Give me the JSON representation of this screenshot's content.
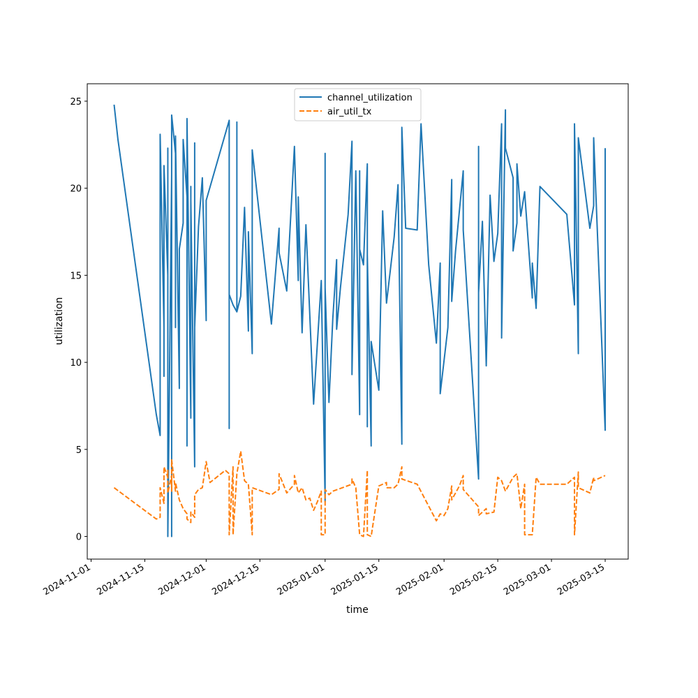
{
  "chart_data": {
    "type": "line",
    "title": "",
    "xlabel": "time",
    "ylabel": "utilization",
    "xlim": [
      "2024-10-31",
      "2025-03-21"
    ],
    "ylim": [
      -1.3,
      26
    ],
    "grid": false,
    "legend_position": "top-center",
    "x_ticks": [
      "2024-11-01",
      "2024-11-15",
      "2024-12-01",
      "2024-12-15",
      "2025-01-01",
      "2025-01-15",
      "2025-02-01",
      "2025-02-15",
      "2025-03-01",
      "2025-03-15"
    ],
    "y_ticks": [
      0,
      5,
      10,
      15,
      20,
      25
    ],
    "series": [
      {
        "name": "channel_utilization",
        "color": "#1f77b4",
        "style": "solid",
        "points": [
          [
            "2024-11-07",
            24.8
          ],
          [
            "2024-11-08",
            22.8
          ],
          [
            "2024-11-18",
            7.0
          ],
          [
            "2024-11-19",
            5.8
          ],
          [
            "2024-11-19",
            23.1
          ],
          [
            "2024-11-20",
            12.0
          ],
          [
            "2024-11-20",
            20.3
          ],
          [
            "2024-11-20",
            9.2
          ],
          [
            "2024-11-20",
            21.3
          ],
          [
            "2024-11-21",
            15.0
          ],
          [
            "2024-11-21",
            22.3
          ],
          [
            "2024-11-21",
            17.6
          ],
          [
            "2024-11-21",
            22.3
          ],
          [
            "2024-11-21",
            0.0
          ],
          [
            "2024-11-22",
            20.8
          ],
          [
            "2024-11-22",
            3.6
          ],
          [
            "2024-11-22",
            20.6
          ],
          [
            "2024-11-22",
            0.0
          ],
          [
            "2024-11-22",
            20.6
          ],
          [
            "2024-11-22",
            24.2
          ],
          [
            "2024-11-23",
            22.0
          ],
          [
            "2024-11-23",
            12.0
          ],
          [
            "2024-11-23",
            21.3
          ],
          [
            "2024-11-23",
            18.2
          ],
          [
            "2024-11-23",
            23.0
          ],
          [
            "2024-11-24",
            8.5
          ],
          [
            "2024-11-24",
            16.5
          ],
          [
            "2024-11-25",
            18.0
          ],
          [
            "2024-11-25",
            22.8
          ],
          [
            "2024-11-26",
            19.5
          ],
          [
            "2024-11-26",
            9.3
          ],
          [
            "2024-11-26",
            20.2
          ],
          [
            "2024-11-26",
            5.2
          ],
          [
            "2024-11-26",
            24.0
          ],
          [
            "2024-11-27",
            6.8
          ],
          [
            "2024-11-27",
            20.1
          ],
          [
            "2024-11-27",
            7.0
          ],
          [
            "2024-11-27",
            19.3
          ],
          [
            "2024-11-28",
            4.0
          ],
          [
            "2024-11-28",
            22.6
          ],
          [
            "2024-11-28",
            12.0
          ],
          [
            "2024-11-29",
            17.8
          ],
          [
            "2024-11-30",
            20.6
          ],
          [
            "2024-12-01",
            12.4
          ],
          [
            "2024-12-01",
            15.7
          ],
          [
            "2024-12-01",
            19.3
          ],
          [
            "2024-12-07",
            23.9
          ],
          [
            "2024-12-07",
            21.0
          ],
          [
            "2024-12-07",
            6.2
          ],
          [
            "2024-12-07",
            13.9
          ],
          [
            "2024-12-08",
            13.3
          ],
          [
            "2024-12-09",
            12.9
          ],
          [
            "2024-12-09",
            23.8
          ],
          [
            "2024-12-09",
            12.9
          ],
          [
            "2024-12-10",
            13.8
          ],
          [
            "2024-12-11",
            18.9
          ],
          [
            "2024-12-12",
            11.8
          ],
          [
            "2024-12-12",
            17.5
          ],
          [
            "2024-12-13",
            10.5
          ],
          [
            "2024-12-13",
            22.2
          ],
          [
            "2024-12-18",
            12.2
          ],
          [
            "2024-12-20",
            17.7
          ],
          [
            "2024-12-20",
            16.3
          ],
          [
            "2024-12-22",
            14.1
          ],
          [
            "2024-12-24",
            22.4
          ],
          [
            "2024-12-25",
            14.7
          ],
          [
            "2024-12-25",
            19.5
          ],
          [
            "2024-12-26",
            11.7
          ],
          [
            "2024-12-27",
            17.9
          ],
          [
            "2024-12-29",
            7.6
          ],
          [
            "2024-12-31",
            14.7
          ],
          [
            "2025-01-01",
            2.0
          ],
          [
            "2025-01-01",
            22.0
          ],
          [
            "2025-01-01",
            14.3
          ],
          [
            "2025-01-02",
            7.7
          ],
          [
            "2025-01-03",
            12.5
          ],
          [
            "2025-01-04",
            15.9
          ],
          [
            "2025-01-04",
            11.9
          ],
          [
            "2025-01-05",
            14.3
          ],
          [
            "2025-01-07",
            18.5
          ],
          [
            "2025-01-08",
            22.7
          ],
          [
            "2025-01-08",
            9.3
          ],
          [
            "2025-01-09",
            21.0
          ],
          [
            "2025-01-10",
            7.0
          ],
          [
            "2025-01-10",
            21.0
          ],
          [
            "2025-01-10",
            16.5
          ],
          [
            "2025-01-11",
            15.6
          ],
          [
            "2025-01-12",
            21.4
          ],
          [
            "2025-01-12",
            6.3
          ],
          [
            "2025-01-12",
            14.5
          ],
          [
            "2025-01-12",
            10.4
          ],
          [
            "2025-01-12",
            16.2
          ],
          [
            "2025-01-13",
            5.2
          ],
          [
            "2025-01-13",
            11.2
          ],
          [
            "2025-01-15",
            8.4
          ],
          [
            "2025-01-16",
            18.7
          ],
          [
            "2025-01-17",
            13.4
          ],
          [
            "2025-01-19",
            17.2
          ],
          [
            "2025-01-20",
            20.2
          ],
          [
            "2025-01-21",
            5.3
          ],
          [
            "2025-01-21",
            23.5
          ],
          [
            "2025-01-22",
            17.7
          ],
          [
            "2025-01-25",
            17.6
          ],
          [
            "2025-01-26",
            23.7
          ],
          [
            "2025-01-28",
            15.6
          ],
          [
            "2025-01-30",
            11.1
          ],
          [
            "2025-01-31",
            15.7
          ],
          [
            "2025-01-31",
            8.2
          ],
          [
            "2025-02-02",
            12.0
          ],
          [
            "2025-02-03",
            20.5
          ],
          [
            "2025-02-03",
            13.5
          ],
          [
            "2025-02-04",
            16.4
          ],
          [
            "2025-02-06",
            21.0
          ],
          [
            "2025-02-06",
            17.6
          ],
          [
            "2025-02-10",
            3.3
          ],
          [
            "2025-02-10",
            22.4
          ],
          [
            "2025-02-10",
            7.5
          ],
          [
            "2025-02-10",
            14.0
          ],
          [
            "2025-02-11",
            18.1
          ],
          [
            "2025-02-12",
            9.8
          ],
          [
            "2025-02-13",
            19.6
          ],
          [
            "2025-02-14",
            15.8
          ],
          [
            "2025-02-15",
            17.4
          ],
          [
            "2025-02-16",
            23.7
          ],
          [
            "2025-02-16",
            11.4
          ],
          [
            "2025-02-17",
            24.5
          ],
          [
            "2025-02-17",
            22.3
          ],
          [
            "2025-02-19",
            20.6
          ],
          [
            "2025-02-19",
            16.4
          ],
          [
            "2025-02-20",
            18.0
          ],
          [
            "2025-02-20",
            21.4
          ],
          [
            "2025-02-21",
            18.4
          ],
          [
            "2025-02-22",
            19.8
          ],
          [
            "2025-02-24",
            13.7
          ],
          [
            "2025-02-24",
            15.7
          ],
          [
            "2025-02-25",
            13.1
          ],
          [
            "2025-02-26",
            20.1
          ],
          [
            "2025-03-05",
            18.5
          ],
          [
            "2025-03-07",
            13.3
          ],
          [
            "2025-03-07",
            23.7
          ],
          [
            "2025-03-08",
            10.5
          ],
          [
            "2025-03-08",
            22.9
          ],
          [
            "2025-03-11",
            17.7
          ],
          [
            "2025-03-12",
            19.0
          ],
          [
            "2025-03-12",
            22.9
          ],
          [
            "2025-03-15",
            6.1
          ],
          [
            "2025-03-15",
            22.3
          ]
        ]
      },
      {
        "name": "air_util_tx",
        "color": "#ff7f0e",
        "style": "dashed",
        "points": [
          [
            "2024-11-07",
            2.8
          ],
          [
            "2024-11-18",
            1.0
          ],
          [
            "2024-11-19",
            1.1
          ],
          [
            "2024-11-19",
            2.8
          ],
          [
            "2024-11-20",
            1.9
          ],
          [
            "2024-11-20",
            4.0
          ],
          [
            "2024-11-21",
            3.4
          ],
          [
            "2024-11-21",
            3.8
          ],
          [
            "2024-11-21",
            2.5
          ],
          [
            "2024-11-22",
            3.5
          ],
          [
            "2024-11-22",
            2.6
          ],
          [
            "2024-11-22",
            4.4
          ],
          [
            "2024-11-23",
            2.6
          ],
          [
            "2024-11-23",
            3.1
          ],
          [
            "2024-11-24",
            2.1
          ],
          [
            "2024-11-25",
            1.6
          ],
          [
            "2024-11-26",
            1.3
          ],
          [
            "2024-11-26",
            1.0
          ],
          [
            "2024-11-27",
            0.8
          ],
          [
            "2024-11-27",
            1.4
          ],
          [
            "2024-11-28",
            1.1
          ],
          [
            "2024-11-28",
            2.4
          ],
          [
            "2024-11-29",
            2.7
          ],
          [
            "2024-11-30",
            2.8
          ],
          [
            "2024-12-01",
            4.3
          ],
          [
            "2024-12-02",
            3.1
          ],
          [
            "2024-12-06",
            3.8
          ],
          [
            "2024-12-07",
            3.6
          ],
          [
            "2024-12-07",
            0.1
          ],
          [
            "2024-12-08",
            4.0
          ],
          [
            "2024-12-08",
            0.1
          ],
          [
            "2024-12-09",
            3.6
          ],
          [
            "2024-12-10",
            4.9
          ],
          [
            "2024-12-11",
            3.2
          ],
          [
            "2024-12-12",
            3.0
          ],
          [
            "2024-12-13",
            0.1
          ],
          [
            "2024-12-13",
            2.8
          ],
          [
            "2024-12-18",
            2.4
          ],
          [
            "2024-12-20",
            2.7
          ],
          [
            "2024-12-20",
            3.6
          ],
          [
            "2024-12-22",
            2.5
          ],
          [
            "2024-12-24",
            3.0
          ],
          [
            "2024-12-24",
            3.5
          ],
          [
            "2024-12-25",
            2.5
          ],
          [
            "2024-12-26",
            2.8
          ],
          [
            "2024-12-27",
            2.1
          ],
          [
            "2024-12-28",
            2.2
          ],
          [
            "2024-12-29",
            1.5
          ],
          [
            "2024-12-30",
            2.0
          ],
          [
            "2024-12-31",
            2.6
          ],
          [
            "2024-12-31",
            0.1
          ],
          [
            "2025-01-01",
            0.1
          ],
          [
            "2025-01-01",
            2.7
          ],
          [
            "2025-01-02",
            2.4
          ],
          [
            "2025-01-03",
            2.6
          ],
          [
            "2025-01-08",
            3.0
          ],
          [
            "2025-01-08",
            3.3
          ],
          [
            "2025-01-09",
            2.8
          ],
          [
            "2025-01-10",
            0.1
          ],
          [
            "2025-01-11",
            0.0
          ],
          [
            "2025-01-12",
            3.8
          ],
          [
            "2025-01-12",
            0.1
          ],
          [
            "2025-01-13",
            0.0
          ],
          [
            "2025-01-15",
            2.9
          ],
          [
            "2025-01-17",
            3.1
          ],
          [
            "2025-01-17",
            2.8
          ],
          [
            "2025-01-19",
            2.8
          ],
          [
            "2025-01-20",
            3.0
          ],
          [
            "2025-01-21",
            4.0
          ],
          [
            "2025-01-21",
            3.3
          ],
          [
            "2025-01-25",
            3.0
          ],
          [
            "2025-01-30",
            0.9
          ],
          [
            "2025-01-31",
            1.3
          ],
          [
            "2025-02-01",
            1.2
          ],
          [
            "2025-02-02",
            1.6
          ],
          [
            "2025-02-03",
            2.9
          ],
          [
            "2025-02-03",
            2.1
          ],
          [
            "2025-02-05",
            2.9
          ],
          [
            "2025-02-06",
            3.5
          ],
          [
            "2025-02-06",
            2.7
          ],
          [
            "2025-02-10",
            1.7
          ],
          [
            "2025-02-10",
            1.2
          ],
          [
            "2025-02-11",
            1.4
          ],
          [
            "2025-02-12",
            1.6
          ],
          [
            "2025-02-12",
            1.3
          ],
          [
            "2025-02-14",
            1.4
          ],
          [
            "2025-02-15",
            3.4
          ],
          [
            "2025-02-16",
            3.2
          ],
          [
            "2025-02-17",
            2.6
          ],
          [
            "2025-02-19",
            3.4
          ],
          [
            "2025-02-20",
            3.6
          ],
          [
            "2025-02-21",
            1.6
          ],
          [
            "2025-02-22",
            3.0
          ],
          [
            "2025-02-22",
            0.1
          ],
          [
            "2025-02-24",
            0.1
          ],
          [
            "2025-02-25",
            3.4
          ],
          [
            "2025-02-26",
            3.0
          ],
          [
            "2025-03-05",
            3.0
          ],
          [
            "2025-03-07",
            3.4
          ],
          [
            "2025-03-07",
            0.1
          ],
          [
            "2025-03-08",
            3.7
          ],
          [
            "2025-03-08",
            2.8
          ],
          [
            "2025-03-11",
            2.5
          ],
          [
            "2025-03-12",
            3.4
          ],
          [
            "2025-03-12",
            3.2
          ],
          [
            "2025-03-15",
            3.5
          ]
        ]
      }
    ]
  }
}
